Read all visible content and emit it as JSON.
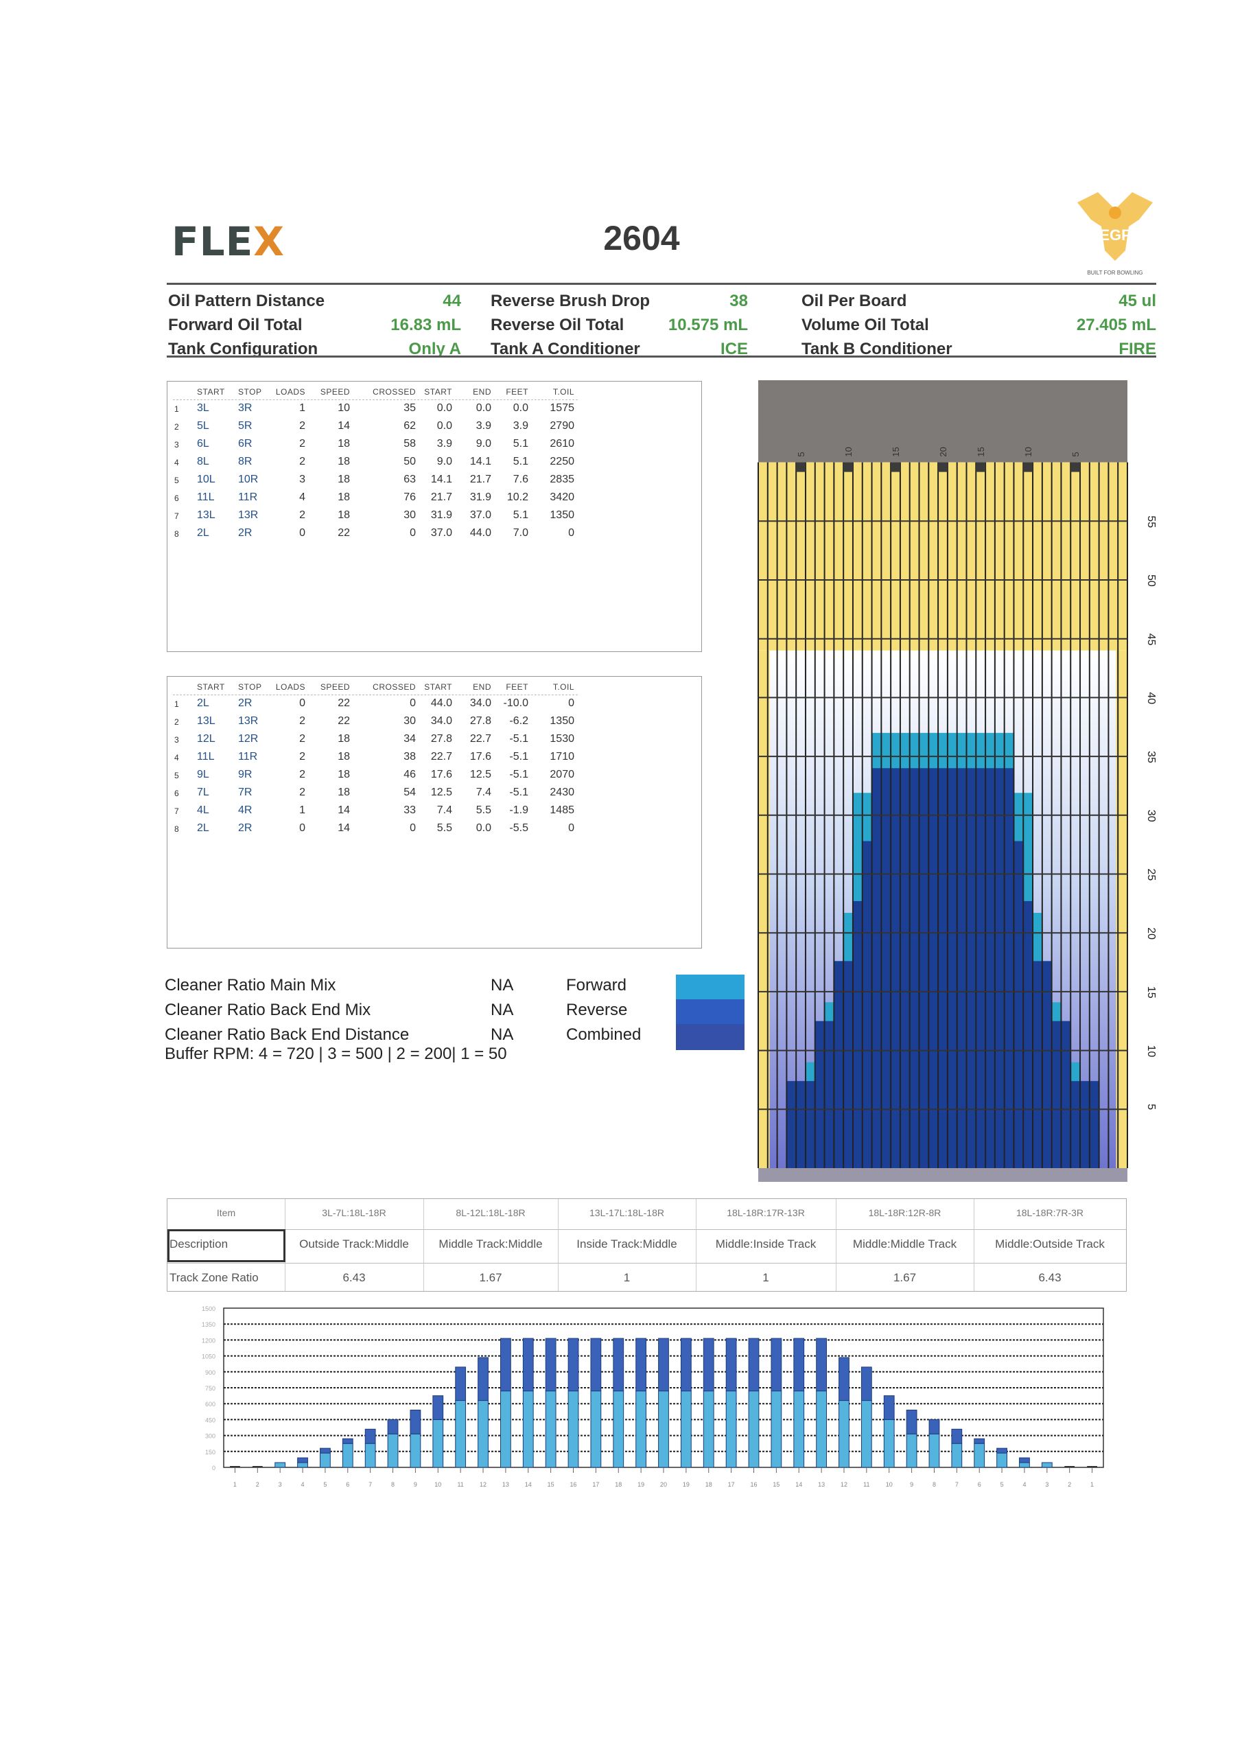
{
  "header": {
    "logo_left": "FLEX",
    "pattern_number": "2604",
    "logo_right": "EGF",
    "logo_right_tagline": "BUILT FOR BOWLING"
  },
  "specs": [
    {
      "label": "Oil Pattern Distance",
      "value": "44"
    },
    {
      "label": "Reverse Brush Drop",
      "value": "38"
    },
    {
      "label": "Oil Per Board",
      "value": "45 ul"
    },
    {
      "label": "Forward Oil Total",
      "value": "16.83 mL"
    },
    {
      "label": "Reverse Oil Total",
      "value": "10.575 mL"
    },
    {
      "label": "Volume Oil Total",
      "value": "27.405 mL"
    },
    {
      "label": "Tank Configuration",
      "value": "Only A"
    },
    {
      "label": "Tank A Conditioner",
      "value": "ICE"
    },
    {
      "label": "Tank B Conditioner",
      "value": "FIRE"
    }
  ],
  "load_columns": [
    "START",
    "STOP",
    "LOADS",
    "SPEED",
    "CROSSED",
    "START",
    "END",
    "FEET",
    "T.OIL"
  ],
  "forward_loads": [
    [
      "1",
      "3L",
      "3R",
      "1",
      "10",
      "35",
      "0.0",
      "0.0",
      "0.0",
      "1575"
    ],
    [
      "2",
      "5L",
      "5R",
      "2",
      "14",
      "62",
      "0.0",
      "3.9",
      "3.9",
      "2790"
    ],
    [
      "3",
      "6L",
      "6R",
      "2",
      "18",
      "58",
      "3.9",
      "9.0",
      "5.1",
      "2610"
    ],
    [
      "4",
      "8L",
      "8R",
      "2",
      "18",
      "50",
      "9.0",
      "14.1",
      "5.1",
      "2250"
    ],
    [
      "5",
      "10L",
      "10R",
      "3",
      "18",
      "63",
      "14.1",
      "21.7",
      "7.6",
      "2835"
    ],
    [
      "6",
      "11L",
      "11R",
      "4",
      "18",
      "76",
      "21.7",
      "31.9",
      "10.2",
      "3420"
    ],
    [
      "7",
      "13L",
      "13R",
      "2",
      "18",
      "30",
      "31.9",
      "37.0",
      "5.1",
      "1350"
    ],
    [
      "8",
      "2L",
      "2R",
      "0",
      "22",
      "0",
      "37.0",
      "44.0",
      "7.0",
      "0"
    ]
  ],
  "reverse_loads": [
    [
      "1",
      "2L",
      "2R",
      "0",
      "22",
      "0",
      "44.0",
      "34.0",
      "-10.0",
      "0"
    ],
    [
      "2",
      "13L",
      "13R",
      "2",
      "22",
      "30",
      "34.0",
      "27.8",
      "-6.2",
      "1350"
    ],
    [
      "3",
      "12L",
      "12R",
      "2",
      "18",
      "34",
      "27.8",
      "22.7",
      "-5.1",
      "1530"
    ],
    [
      "4",
      "11L",
      "11R",
      "2",
      "18",
      "38",
      "22.7",
      "17.6",
      "-5.1",
      "1710"
    ],
    [
      "5",
      "9L",
      "9R",
      "2",
      "18",
      "46",
      "17.6",
      "12.5",
      "-5.1",
      "2070"
    ],
    [
      "6",
      "7L",
      "7R",
      "2",
      "18",
      "54",
      "12.5",
      "7.4",
      "-5.1",
      "2430"
    ],
    [
      "7",
      "4L",
      "4R",
      "1",
      "14",
      "33",
      "7.4",
      "5.5",
      "-1.9",
      "1485"
    ],
    [
      "8",
      "2L",
      "2R",
      "0",
      "14",
      "0",
      "5.5",
      "0.0",
      "-5.5",
      "0"
    ]
  ],
  "cleaner": [
    {
      "label": "Cleaner Ratio Main Mix",
      "value": "NA",
      "legend": "Forward"
    },
    {
      "label": "Cleaner Ratio Back End Mix",
      "value": "NA",
      "legend": "Reverse"
    },
    {
      "label": "Cleaner Ratio Back End Distance",
      "value": "NA",
      "legend": "Combined"
    }
  ],
  "buffer_rpm": "Buffer RPM: 4 = 720 | 3 = 500 | 2 = 200| 1 = 50",
  "legend_colors": {
    "forward": "#2aa3d8",
    "reverse": "#2f5cc0",
    "combined": "#3550a8"
  },
  "lane_graph": {
    "board_labels": [
      "5",
      "10",
      "15",
      "20",
      "15",
      "10",
      "5"
    ],
    "feet_labels": [
      "55",
      "50",
      "45",
      "40",
      "35",
      "30",
      "25",
      "20",
      "15",
      "10",
      "5"
    ],
    "forward_depth_ft": [
      0,
      0,
      0,
      0,
      3.9,
      9,
      9,
      14.1,
      14.1,
      21.7,
      31.9,
      31.9,
      37,
      37,
      37,
      37,
      37,
      37,
      37,
      37
    ],
    "reverse_depth_ft": [
      0,
      0,
      0,
      7.4,
      7.4,
      7.4,
      12.5,
      12.5,
      17.6,
      17.6,
      22.7,
      27.8,
      34,
      34,
      34,
      34,
      34,
      34,
      34,
      34
    ],
    "pattern_length_ft": 44
  },
  "track_zone": {
    "headers": [
      "Item",
      "3L-7L:18L-18R",
      "8L-12L:18L-18R",
      "13L-17L:18L-18R",
      "18L-18R:17R-13R",
      "18L-18R:12R-8R",
      "18L-18R:7R-3R"
    ],
    "description": [
      "Description",
      "Outside Track:Middle",
      "Middle Track:Middle",
      "Inside Track:Middle",
      "Middle:Inside Track",
      "Middle:Middle Track",
      "Middle:Outside Track"
    ],
    "ratio": [
      "Track Zone Ratio",
      "6.43",
      "1.67",
      "1",
      "1",
      "1.67",
      "6.43"
    ]
  },
  "chart_data": {
    "type": "bar",
    "stacked": true,
    "title": "",
    "xlabel": "",
    "ylabel": "",
    "categories": [
      "1",
      "2",
      "3",
      "4",
      "5",
      "6",
      "7",
      "8",
      "9",
      "10",
      "11",
      "12",
      "13",
      "14",
      "15",
      "16",
      "17",
      "18",
      "19",
      "20",
      "19",
      "18",
      "17",
      "16",
      "15",
      "14",
      "13",
      "12",
      "11",
      "10",
      "9",
      "8",
      "7",
      "6",
      "5",
      "4",
      "3",
      "2",
      "1"
    ],
    "series": [
      {
        "name": "Forward",
        "color": "#55b4de",
        "values": [
          0,
          0,
          45,
          45,
          135,
          225,
          225,
          315,
          315,
          450,
          630,
          630,
          720,
          720,
          720,
          720,
          720,
          720,
          720,
          720,
          720,
          720,
          720,
          720,
          720,
          720,
          720,
          630,
          630,
          450,
          315,
          315,
          225,
          225,
          135,
          45,
          45,
          0,
          0
        ]
      },
      {
        "name": "Reverse",
        "color": "#3a62b8",
        "values": [
          0,
          0,
          0,
          45,
          45,
          45,
          135,
          135,
          225,
          225,
          315,
          405,
          495,
          495,
          495,
          495,
          495,
          495,
          495,
          495,
          495,
          495,
          495,
          495,
          495,
          495,
          495,
          405,
          315,
          225,
          225,
          135,
          135,
          45,
          45,
          45,
          0,
          0,
          0
        ]
      }
    ],
    "yticks": [
      "0",
      "150",
      "300",
      "450",
      "600",
      "750",
      "900",
      "1050",
      "1200",
      "1350",
      "1500"
    ],
    "ylim": [
      0,
      1500
    ],
    "grid": true
  }
}
